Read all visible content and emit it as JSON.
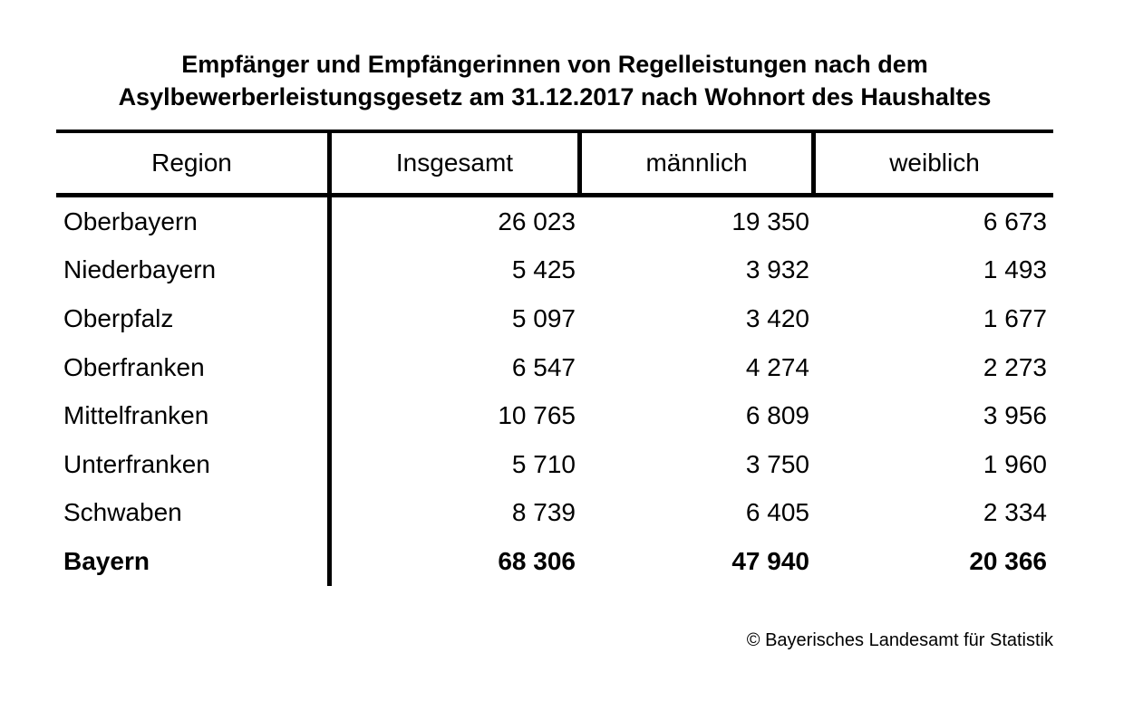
{
  "title": {
    "line1": "Empfänger und Empfängerinnen von Regelleistungen nach dem",
    "line2": "Asylbewerberleistungsgesetz am 31.12.2017 nach Wohnort des Haushaltes"
  },
  "table": {
    "columns": [
      "Region",
      "Insgesamt",
      "männlich",
      "weiblich"
    ],
    "rows": [
      {
        "region": "Oberbayern",
        "insgesamt": "26 023",
        "maennlich": "19 350",
        "weiblich": "6 673"
      },
      {
        "region": "Niederbayern",
        "insgesamt": "5 425",
        "maennlich": "3 932",
        "weiblich": "1 493"
      },
      {
        "region": "Oberpfalz",
        "insgesamt": "5 097",
        "maennlich": "3 420",
        "weiblich": "1 677"
      },
      {
        "region": "Oberfranken",
        "insgesamt": "6 547",
        "maennlich": "4 274",
        "weiblich": "2 273"
      },
      {
        "region": "Mittelfranken",
        "insgesamt": "10 765",
        "maennlich": "6 809",
        "weiblich": "3 956"
      },
      {
        "region": "Unterfranken",
        "insgesamt": "5 710",
        "maennlich": "3 750",
        "weiblich": "1 960"
      },
      {
        "region": "Schwaben",
        "insgesamt": "8 739",
        "maennlich": "6 405",
        "weiblich": "2 334"
      }
    ],
    "total_row": {
      "region": "Bayern",
      "insgesamt": "68 306",
      "maennlich": "47 940",
      "weiblich": "20 366"
    }
  },
  "footer": {
    "copyright": "© Bayerisches Landesamt für Statistik"
  },
  "colors": {
    "text": "#000000",
    "background": "#ffffff",
    "rule": "#000000"
  },
  "chart_data": {
    "type": "table",
    "title": "Empfänger und Empfängerinnen von Regelleistungen nach dem Asylbewerberleistungsgesetz am 31.12.2017 nach Wohnort des Haushaltes",
    "categories": [
      "Oberbayern",
      "Niederbayern",
      "Oberpfalz",
      "Oberfranken",
      "Mittelfranken",
      "Unterfranken",
      "Schwaben",
      "Bayern"
    ],
    "series": [
      {
        "name": "Insgesamt",
        "values": [
          26023,
          5425,
          5097,
          6547,
          10765,
          5710,
          8739,
          68306
        ]
      },
      {
        "name": "männlich",
        "values": [
          19350,
          3932,
          3420,
          4274,
          6809,
          3750,
          6405,
          47940
        ]
      },
      {
        "name": "weiblich",
        "values": [
          6673,
          1493,
          1677,
          2273,
          3956,
          1960,
          2334,
          20366
        ]
      }
    ]
  }
}
